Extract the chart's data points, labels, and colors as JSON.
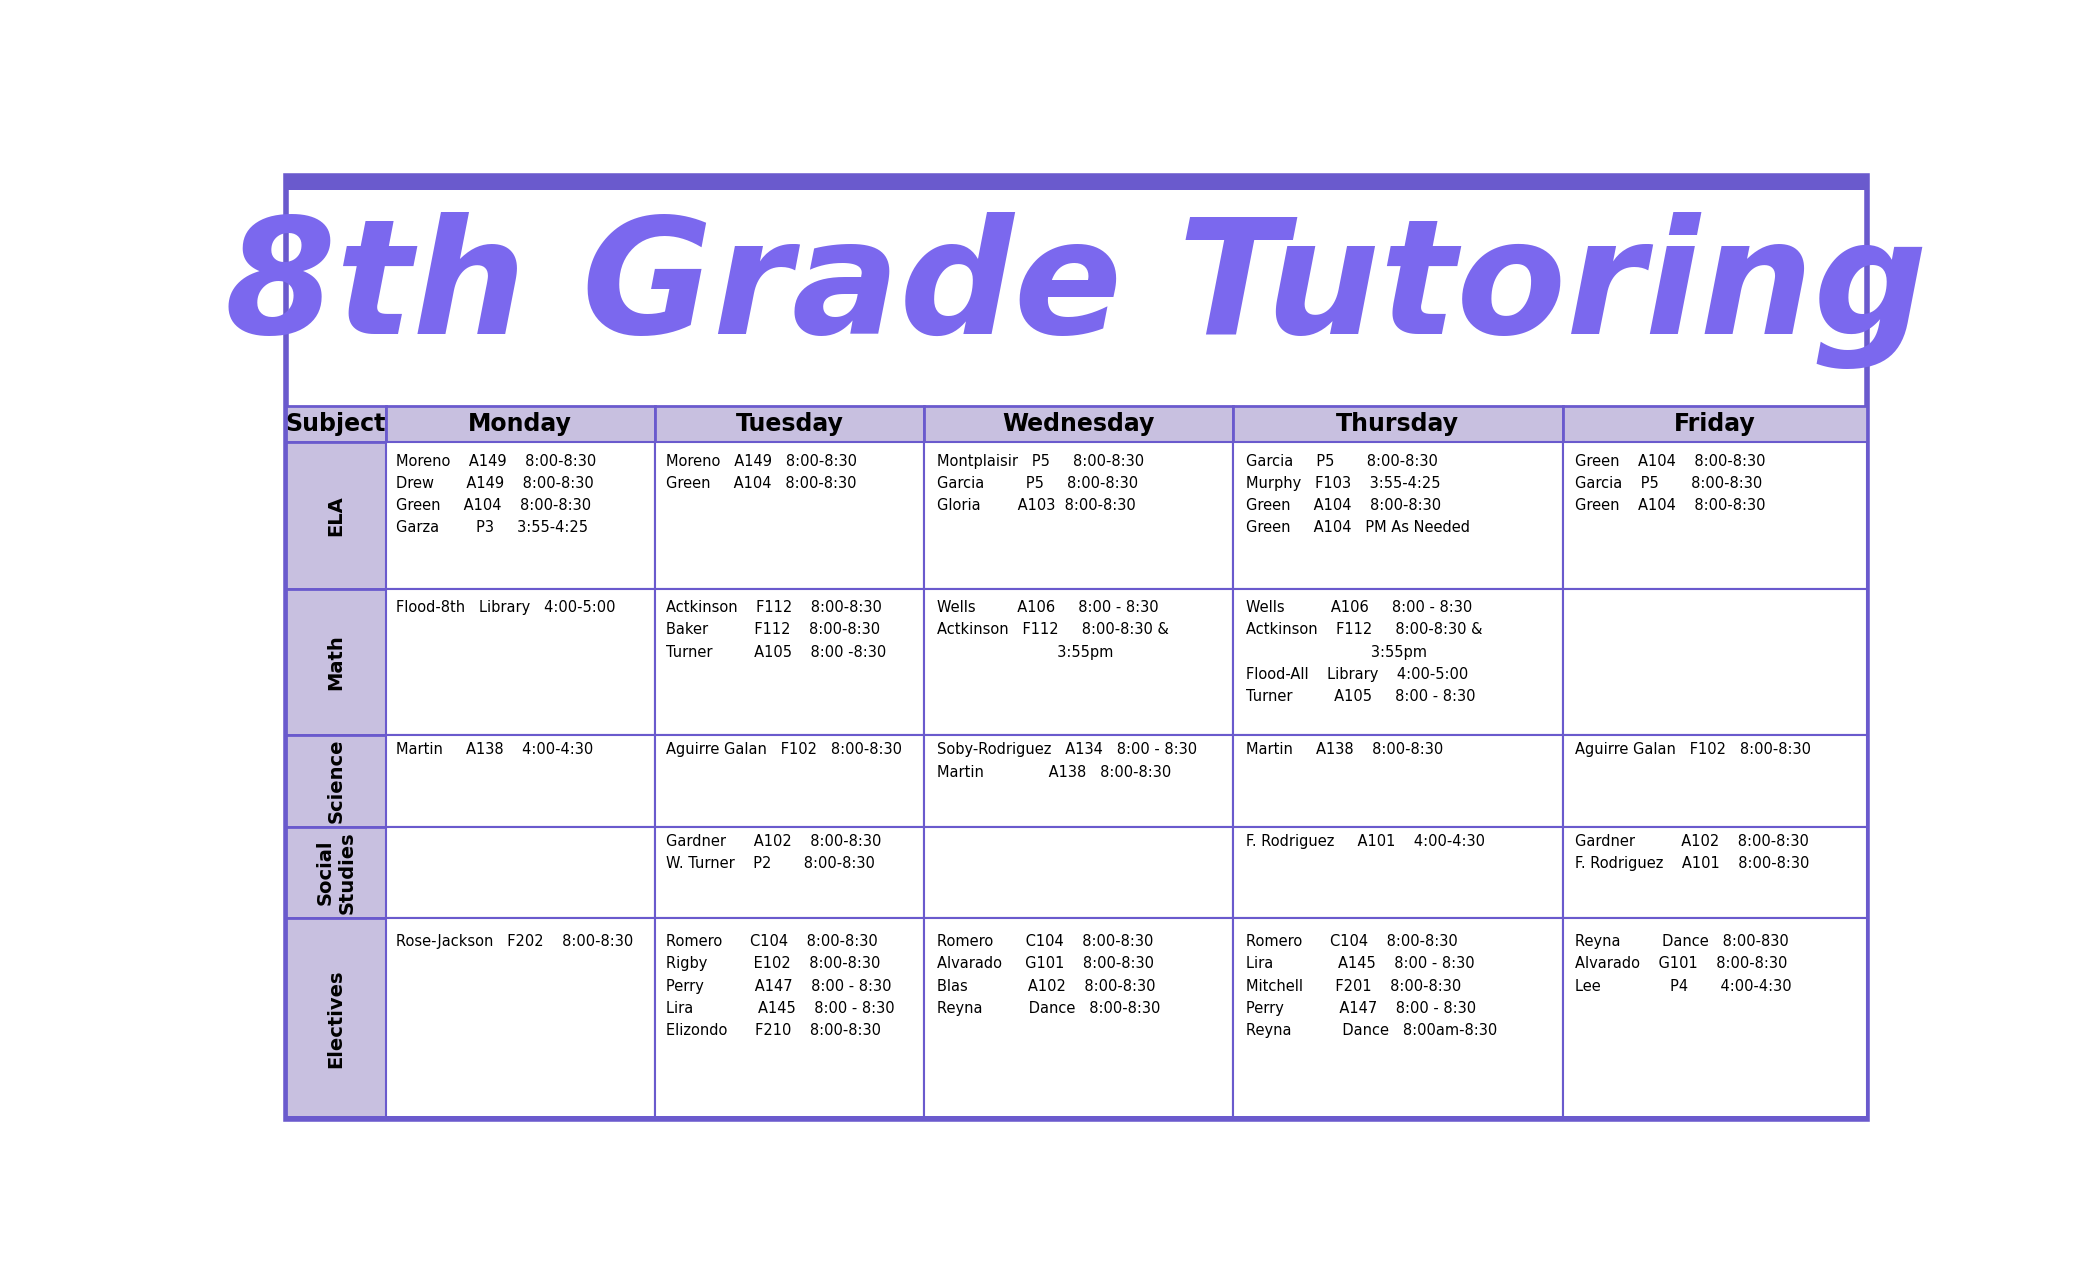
{
  "title": "8th Grade Tutoring",
  "title_color": "#7B68EE",
  "background_color": "#FFFFFF",
  "border_color": "#6A5ACD",
  "header_bg": "#C8C0E0",
  "cell_bg": "#FFFFFF",
  "col_header": [
    "Subject",
    "Monday",
    "Tuesday",
    "Wednesday",
    "Thursday",
    "Friday"
  ],
  "subjects": [
    "ELA",
    "Math",
    "Science",
    "Social\nStudies",
    "Electives"
  ],
  "subject_row_heights": [
    4,
    4,
    2.5,
    2.5,
    5.5
  ],
  "cells": {
    "ELA": {
      "Monday": "Moreno    A149    8:00-8:30\nDrew       A149    8:00-8:30\nGreen     A104    8:00-8:30\nGarza        P3     3:55-4:25",
      "Tuesday": "Moreno   A149   8:00-8:30\nGreen     A104   8:00-8:30",
      "Wednesday": "Montplaisir   P5     8:00-8:30\nGarcia         P5     8:00-8:30\nGloria        A103  8:00-8:30",
      "Thursday": "Garcia     P5       8:00-8:30\nMurphy   F103    3:55-4:25\nGreen     A104    8:00-8:30\nGreen     A104   PM As Needed",
      "Friday": "Green    A104    8:00-8:30\nGarcia    P5       8:00-8:30\nGreen    A104    8:00-8:30"
    },
    "Math": {
      "Monday": "Flood-8th   Library   4:00-5:00",
      "Tuesday": "Actkinson    F112    8:00-8:30\nBaker          F112    8:00-8:30\nTurner         A105    8:00 -8:30",
      "Wednesday": "Wells         A106     8:00 - 8:30\nActkinson   F112     8:00-8:30 &\n                          3:55pm",
      "Thursday": "Wells          A106     8:00 - 8:30\nActkinson    F112     8:00-8:30 &\n                           3:55pm\nFlood-All    Library    4:00-5:00\nTurner         A105     8:00 - 8:30",
      "Friday": ""
    },
    "Science": {
      "Monday": "Martin     A138    4:00-4:30",
      "Tuesday": "Aguirre Galan   F102   8:00-8:30",
      "Wednesday": "Soby-Rodriguez   A134   8:00 - 8:30\nMartin              A138   8:00-8:30",
      "Thursday": "Martin     A138    8:00-8:30",
      "Friday": "Aguirre Galan   F102   8:00-8:30"
    },
    "Social\nStudies": {
      "Monday": "",
      "Tuesday": "Gardner      A102    8:00-8:30\nW. Turner    P2       8:00-8:30",
      "Wednesday": "",
      "Thursday": "F. Rodriguez     A101    4:00-4:30",
      "Friday": "Gardner          A102    8:00-8:30\nF. Rodriguez    A101    8:00-8:30"
    },
    "Electives": {
      "Monday": "Rose-Jackson   F202    8:00-8:30",
      "Tuesday": "Romero      C104    8:00-8:30\nRigby          E102    8:00-8:30\nPerry           A147    8:00 - 8:30\nLira              A145    8:00 - 8:30\nElizondo      F210    8:00-8:30",
      "Wednesday": "Romero       C104    8:00-8:30\nAlvarado     G101    8:00-8:30\nBlas             A102    8:00-8:30\nReyna          Dance   8:00-8:30",
      "Thursday": "Romero      C104    8:00-8:30\nLira              A145    8:00 - 8:30\nMitchell       F201    8:00-8:30\nPerry            A147    8:00 - 8:30\nReyna           Dance   8:00am-8:30",
      "Friday": "Reyna         Dance   8:00-830\nAlvarado    G101    8:00-8:30\nLee               P4       4:00-4:30"
    }
  }
}
